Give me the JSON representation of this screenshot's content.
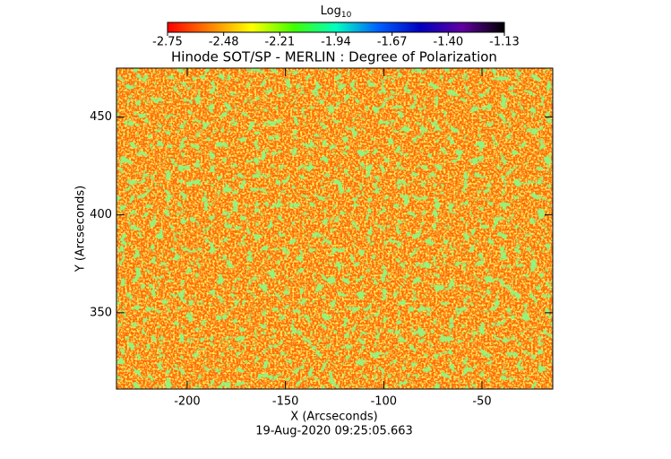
{
  "chart_data": {
    "type": "heatmap",
    "title": "Hinode SOT/SP - MERLIN : Degree of Polarization",
    "xlabel": "X (Arcseconds)",
    "ylabel": "Y (Arcseconds)",
    "footer": "19-Aug-2020 09:25:05.663",
    "xlim": [
      -236,
      -14
    ],
    "xticks": [
      -200,
      -150,
      -100,
      -50
    ],
    "ylim": [
      311,
      475
    ],
    "yticks": [
      350,
      400,
      450
    ],
    "colorbar": {
      "label": {
        "text": "Log",
        "subscript": "10"
      },
      "clim": [
        -2.75,
        -1.13
      ],
      "ticks": [
        -2.75,
        -2.48,
        -2.21,
        -1.94,
        -1.67,
        -1.4,
        -1.13
      ],
      "tick_labels": [
        "-2.75",
        "-2.48",
        "-2.21",
        "-1.94",
        "-1.67",
        "-1.40",
        "-1.13"
      ],
      "colors": [
        "#ff0000",
        "#ff8000",
        "#ffff00",
        "#40ff00",
        "#00ffc0",
        "#0060ff",
        "#0000c0",
        "#6000a0",
        "#000000"
      ]
    }
  }
}
